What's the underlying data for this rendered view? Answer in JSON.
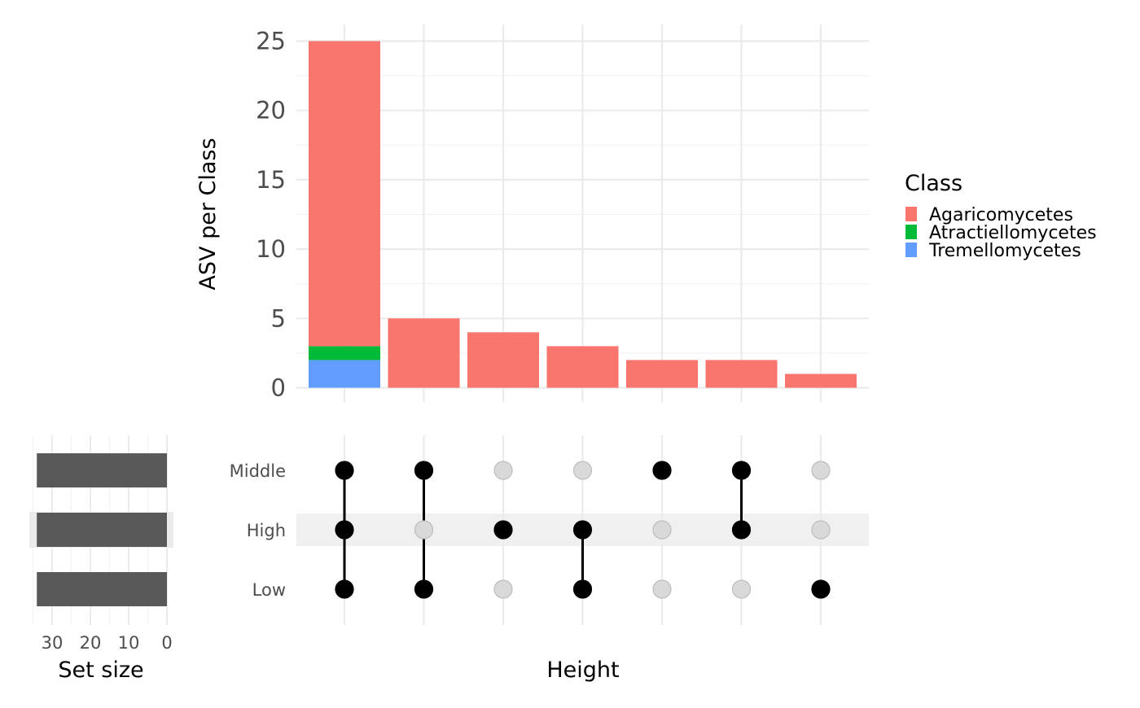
{
  "chart_data": [
    {
      "type": "bar",
      "stacked": true,
      "ylabel": "ASV per Class",
      "xlabel": "Height",
      "ylim": [
        0,
        26
      ],
      "yticks": [
        0,
        5,
        10,
        15,
        20,
        25
      ],
      "grid": true,
      "legend": {
        "title": "Class",
        "position": "right"
      },
      "series": [
        {
          "name": "Agaricomycetes",
          "color": "#F8766D",
          "values": [
            22,
            5,
            4,
            3,
            2,
            2,
            1
          ]
        },
        {
          "name": "Atractiellomycetes",
          "color": "#00BA38",
          "values": [
            1,
            0,
            0,
            0,
            0,
            0,
            0
          ]
        },
        {
          "name": "Tremellomycetes",
          "color": "#619CFF",
          "values": [
            2,
            0,
            0,
            0,
            0,
            0,
            0
          ]
        }
      ]
    },
    {
      "type": "matrix",
      "sets": [
        "Middle",
        "High",
        "Low"
      ],
      "highlighted_set": "High",
      "intersections": [
        [
          "Middle",
          "High",
          "Low"
        ],
        [
          "Middle",
          "Low"
        ],
        [
          "High"
        ],
        [
          "High",
          "Low"
        ],
        [
          "Middle"
        ],
        [
          "Middle",
          "High"
        ],
        [
          "Low"
        ]
      ],
      "xlabel": "Height"
    },
    {
      "type": "bar",
      "orientation": "horizontal",
      "reversed_x": true,
      "xlabel": "Set size",
      "xticks": [
        30,
        20,
        10,
        0
      ],
      "categories": [
        "Middle",
        "High",
        "Low"
      ],
      "values": [
        34,
        34,
        34
      ],
      "color": "#595959"
    }
  ]
}
